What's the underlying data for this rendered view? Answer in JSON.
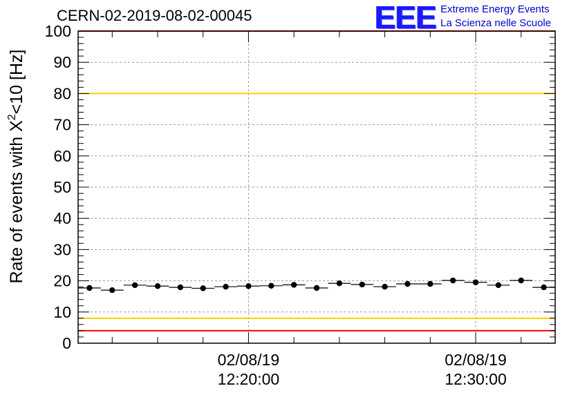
{
  "header": {
    "run_title": "CERN-02-2019-08-02-00045",
    "logo_mark": "EEE",
    "logo_line1": "Extreme Energy Events",
    "logo_line2": "La Scienza nelle Scuole"
  },
  "colors": {
    "points": "#000000",
    "red_threshold": "#ff0000",
    "yellow_threshold": "#ffcc00",
    "grid": "#999999",
    "logo": "#1a1aff"
  },
  "chart_data": {
    "type": "scatter",
    "title": "CERN-02-2019-08-02-00045",
    "ylabel": "Rate of events with X²<10 [Hz]",
    "ylabel_parts": {
      "prefix": "Rate of events with X",
      "sup": "2",
      "suffix": "<10 [Hz]"
    },
    "ylim": [
      0,
      100
    ],
    "yticks": [
      0,
      10,
      20,
      30,
      40,
      50,
      60,
      70,
      80,
      90,
      100
    ],
    "xlim_minutes": [
      12.5,
      33.5
    ],
    "xticks": [
      {
        "minute": 20,
        "date": "02/08/19",
        "time": "12:20:00"
      },
      {
        "minute": 30,
        "date": "02/08/19",
        "time": "12:30:00"
      }
    ],
    "grid": true,
    "thresholds": [
      {
        "value": 100,
        "color": "red"
      },
      {
        "value": 80,
        "color": "yellow"
      },
      {
        "value": 8,
        "color": "yellow"
      },
      {
        "value": 4,
        "color": "red"
      }
    ],
    "x": [
      13,
      14,
      15,
      16,
      17,
      18,
      19,
      20,
      21,
      22,
      23,
      24,
      25,
      26,
      27,
      28,
      29,
      30,
      31,
      32,
      33
    ],
    "values": [
      17.7,
      17.0,
      18.6,
      18.3,
      17.9,
      17.6,
      18.1,
      18.3,
      18.4,
      18.7,
      17.7,
      19.2,
      18.8,
      18.1,
      19.0,
      19.0,
      20.1,
      19.5,
      18.6,
      20.1,
      17.9
    ],
    "bin_half_width_minutes": 0.5,
    "y_error": 0.3
  }
}
